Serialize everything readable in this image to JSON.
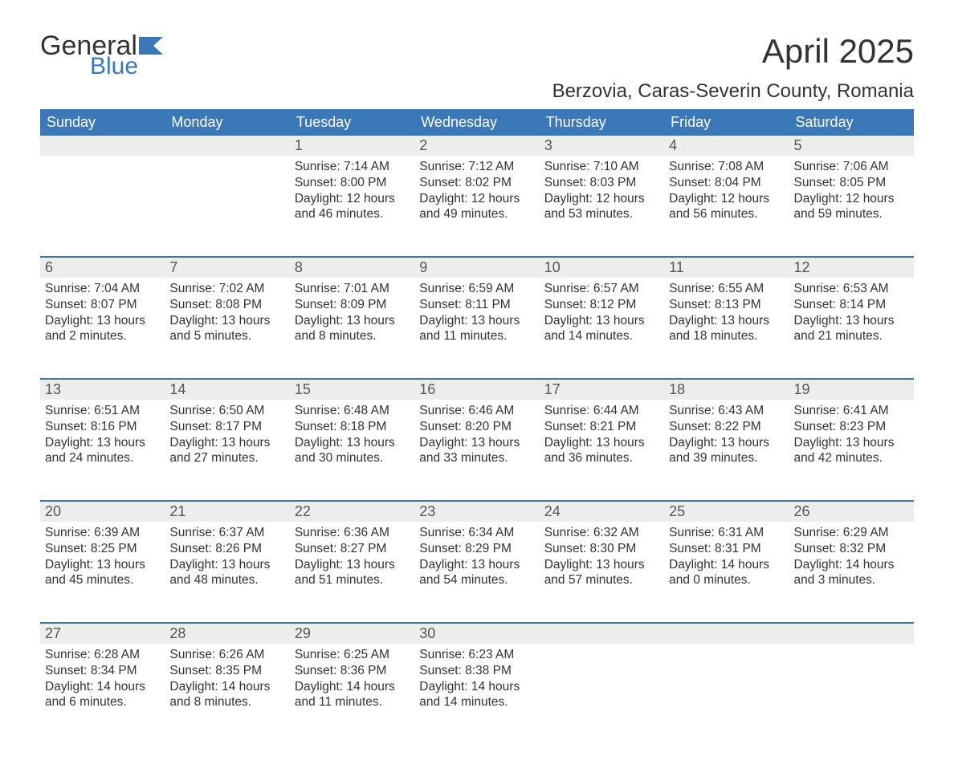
{
  "logo": {
    "text1": "General",
    "text2": "Blue",
    "flag_color": "#3b78b8"
  },
  "title": "April 2025",
  "location": "Berzovia, Caras-Severin County, Romania",
  "colors": {
    "header_bg": "#3b78b8",
    "header_text": "#ffffff",
    "daynum_bg": "#ededed",
    "rule": "#3b78b8",
    "body_text": "#333333"
  },
  "day_headers": [
    "Sunday",
    "Monday",
    "Tuesday",
    "Wednesday",
    "Thursday",
    "Friday",
    "Saturday"
  ],
  "weeks": [
    [
      null,
      null,
      {
        "n": "1",
        "sr": "7:14 AM",
        "ss": "8:00 PM",
        "dl": "12 hours and 46 minutes."
      },
      {
        "n": "2",
        "sr": "7:12 AM",
        "ss": "8:02 PM",
        "dl": "12 hours and 49 minutes."
      },
      {
        "n": "3",
        "sr": "7:10 AM",
        "ss": "8:03 PM",
        "dl": "12 hours and 53 minutes."
      },
      {
        "n": "4",
        "sr": "7:08 AM",
        "ss": "8:04 PM",
        "dl": "12 hours and 56 minutes."
      },
      {
        "n": "5",
        "sr": "7:06 AM",
        "ss": "8:05 PM",
        "dl": "12 hours and 59 minutes."
      }
    ],
    [
      {
        "n": "6",
        "sr": "7:04 AM",
        "ss": "8:07 PM",
        "dl": "13 hours and 2 minutes."
      },
      {
        "n": "7",
        "sr": "7:02 AM",
        "ss": "8:08 PM",
        "dl": "13 hours and 5 minutes."
      },
      {
        "n": "8",
        "sr": "7:01 AM",
        "ss": "8:09 PM",
        "dl": "13 hours and 8 minutes."
      },
      {
        "n": "9",
        "sr": "6:59 AM",
        "ss": "8:11 PM",
        "dl": "13 hours and 11 minutes."
      },
      {
        "n": "10",
        "sr": "6:57 AM",
        "ss": "8:12 PM",
        "dl": "13 hours and 14 minutes."
      },
      {
        "n": "11",
        "sr": "6:55 AM",
        "ss": "8:13 PM",
        "dl": "13 hours and 18 minutes."
      },
      {
        "n": "12",
        "sr": "6:53 AM",
        "ss": "8:14 PM",
        "dl": "13 hours and 21 minutes."
      }
    ],
    [
      {
        "n": "13",
        "sr": "6:51 AM",
        "ss": "8:16 PM",
        "dl": "13 hours and 24 minutes."
      },
      {
        "n": "14",
        "sr": "6:50 AM",
        "ss": "8:17 PM",
        "dl": "13 hours and 27 minutes."
      },
      {
        "n": "15",
        "sr": "6:48 AM",
        "ss": "8:18 PM",
        "dl": "13 hours and 30 minutes."
      },
      {
        "n": "16",
        "sr": "6:46 AM",
        "ss": "8:20 PM",
        "dl": "13 hours and 33 minutes."
      },
      {
        "n": "17",
        "sr": "6:44 AM",
        "ss": "8:21 PM",
        "dl": "13 hours and 36 minutes."
      },
      {
        "n": "18",
        "sr": "6:43 AM",
        "ss": "8:22 PM",
        "dl": "13 hours and 39 minutes."
      },
      {
        "n": "19",
        "sr": "6:41 AM",
        "ss": "8:23 PM",
        "dl": "13 hours and 42 minutes."
      }
    ],
    [
      {
        "n": "20",
        "sr": "6:39 AM",
        "ss": "8:25 PM",
        "dl": "13 hours and 45 minutes."
      },
      {
        "n": "21",
        "sr": "6:37 AM",
        "ss": "8:26 PM",
        "dl": "13 hours and 48 minutes."
      },
      {
        "n": "22",
        "sr": "6:36 AM",
        "ss": "8:27 PM",
        "dl": "13 hours and 51 minutes."
      },
      {
        "n": "23",
        "sr": "6:34 AM",
        "ss": "8:29 PM",
        "dl": "13 hours and 54 minutes."
      },
      {
        "n": "24",
        "sr": "6:32 AM",
        "ss": "8:30 PM",
        "dl": "13 hours and 57 minutes."
      },
      {
        "n": "25",
        "sr": "6:31 AM",
        "ss": "8:31 PM",
        "dl": "14 hours and 0 minutes."
      },
      {
        "n": "26",
        "sr": "6:29 AM",
        "ss": "8:32 PM",
        "dl": "14 hours and 3 minutes."
      }
    ],
    [
      {
        "n": "27",
        "sr": "6:28 AM",
        "ss": "8:34 PM",
        "dl": "14 hours and 6 minutes."
      },
      {
        "n": "28",
        "sr": "6:26 AM",
        "ss": "8:35 PM",
        "dl": "14 hours and 8 minutes."
      },
      {
        "n": "29",
        "sr": "6:25 AM",
        "ss": "8:36 PM",
        "dl": "14 hours and 11 minutes."
      },
      {
        "n": "30",
        "sr": "6:23 AM",
        "ss": "8:38 PM",
        "dl": "14 hours and 14 minutes."
      },
      null,
      null,
      null
    ]
  ],
  "labels": {
    "sunrise": "Sunrise: ",
    "sunset": "Sunset: ",
    "daylight": "Daylight: "
  }
}
